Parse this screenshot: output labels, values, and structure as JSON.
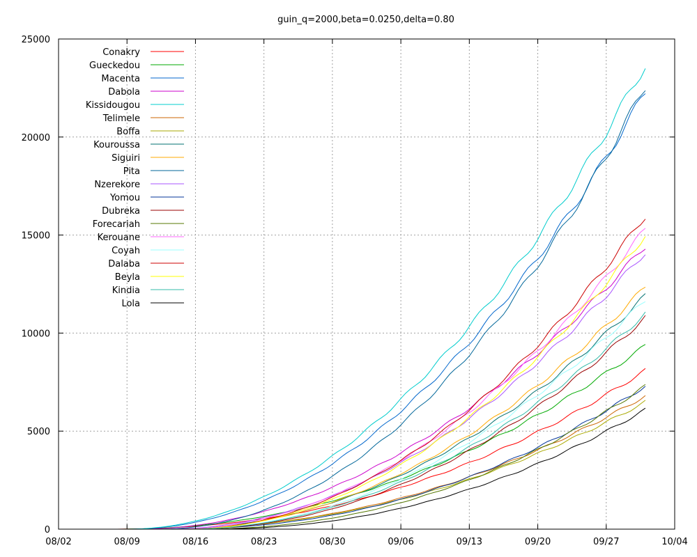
{
  "chart_data": {
    "type": "line",
    "title": "guin_q=2000,beta=0.0250,delta=0.80",
    "xlabel": "",
    "ylabel": "",
    "x_ticks": [
      "08/02",
      "08/09",
      "08/16",
      "08/23",
      "08/30",
      "09/06",
      "09/13",
      "09/20",
      "09/27",
      "10/04"
    ],
    "x_range": [
      0,
      63
    ],
    "ylim": [
      0,
      25000
    ],
    "y_ticks": [
      0,
      5000,
      10000,
      15000,
      20000,
      25000
    ],
    "grid": true,
    "legend_position": "top-left",
    "x_end": 60,
    "x_unit": "days since 08/02",
    "series": [
      {
        "name": "Conakry",
        "color": "#ff0000",
        "start": 5,
        "final": 8100,
        "k": 2.2
      },
      {
        "name": "Gueckedou",
        "color": "#00aa00",
        "start": 6,
        "final": 9350,
        "k": 2.08
      },
      {
        "name": "Macenta",
        "color": "#0066cc",
        "start": 7,
        "final": 22300,
        "k": 2.05
      },
      {
        "name": "Dabola",
        "color": "#cc00cc",
        "start": 8,
        "final": 14450,
        "k": 2.0
      },
      {
        "name": "Kissidougou",
        "color": "#00cccc",
        "start": 7,
        "final": 23700,
        "k": 2.0
      },
      {
        "name": "Telimele",
        "color": "#cc6600",
        "start": 10,
        "final": 6800,
        "k": 2.1
      },
      {
        "name": "Boffa",
        "color": "#aaaa00",
        "start": 10,
        "final": 6500,
        "k": 2.1
      },
      {
        "name": "Kouroussa",
        "color": "#007070",
        "start": 11,
        "final": 11900,
        "k": 2.05
      },
      {
        "name": "Siguiri",
        "color": "#ffaa00",
        "start": 12,
        "final": 12350,
        "k": 2.0
      },
      {
        "name": "Pita",
        "color": "#006699",
        "start": 10,
        "final": 22600,
        "k": 2.08
      },
      {
        "name": "Nzerekore",
        "color": "#aa55ff",
        "start": 11,
        "final": 14150,
        "k": 2.0
      },
      {
        "name": "Yomou",
        "color": "#003399",
        "start": 11,
        "final": 7300,
        "k": 2.2
      },
      {
        "name": "Dubreka",
        "color": "#990000",
        "start": 13,
        "final": 10800,
        "k": 2.05
      },
      {
        "name": "Forecariah",
        "color": "#557700",
        "start": 14,
        "final": 7300,
        "k": 2.15
      },
      {
        "name": "Kerouane",
        "color": "#ff66ff",
        "start": 12,
        "final": 15300,
        "k": 2.0
      },
      {
        "name": "Coyah",
        "color": "#99ffff",
        "start": 13,
        "final": 11700,
        "k": 2.0
      },
      {
        "name": "Dalaba",
        "color": "#cc0000",
        "start": 13,
        "final": 16000,
        "k": 2.0
      },
      {
        "name": "Beyla",
        "color": "#ffff00",
        "start": 13,
        "final": 15000,
        "k": 2.0
      },
      {
        "name": "Kindia",
        "color": "#33bbaa",
        "start": 13,
        "final": 11000,
        "k": 2.0
      },
      {
        "name": "Lola",
        "color": "#000000",
        "start": 15,
        "final": 6100,
        "k": 2.15
      }
    ]
  }
}
